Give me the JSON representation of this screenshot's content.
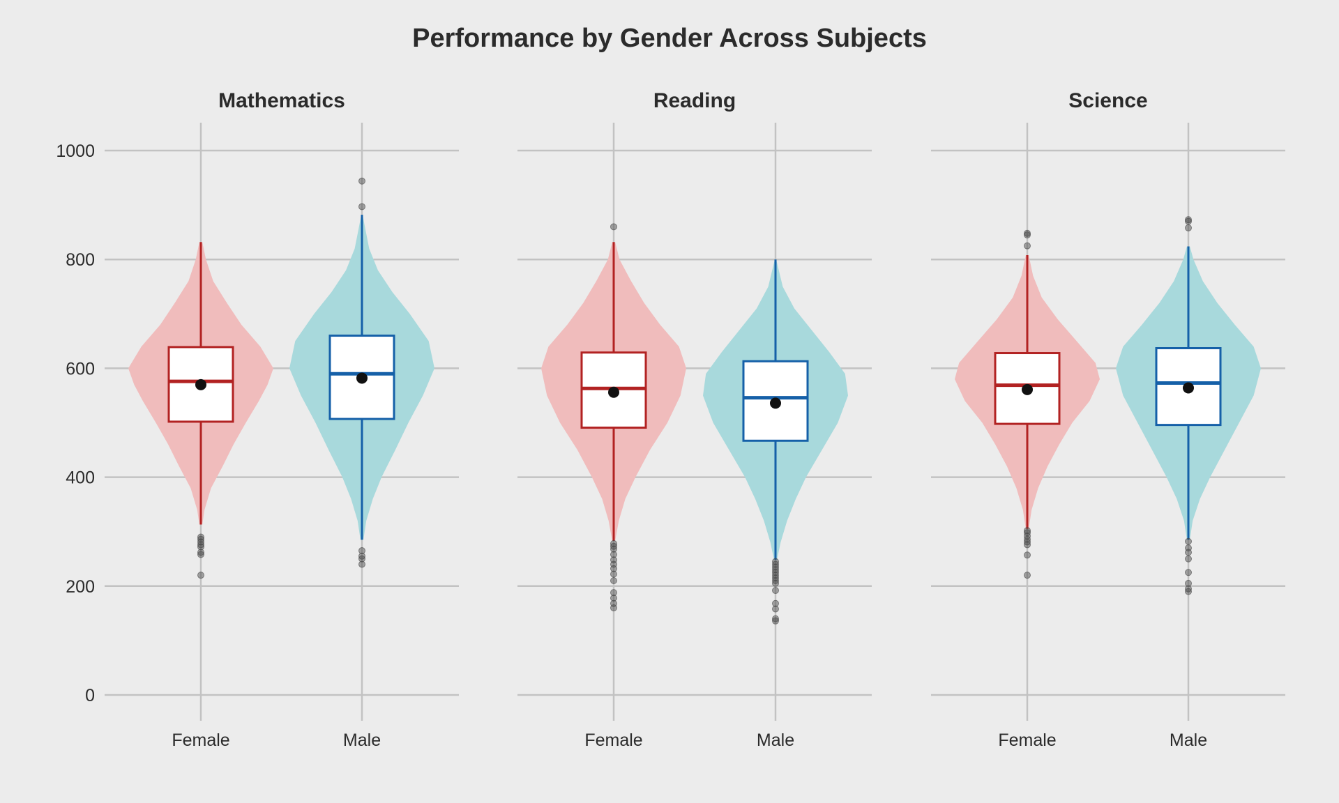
{
  "chart_data": {
    "type": "violin",
    "title": "Performance by Gender Across Subjects",
    "xlabel": "",
    "ylabel": "",
    "ylim": [
      0,
      1000
    ],
    "y_ticks": [
      0,
      200,
      400,
      600,
      800,
      1000
    ],
    "grid": true,
    "legend": "none",
    "groups": [
      "Female",
      "Male"
    ],
    "colors": {
      "Female": {
        "fill": "#f0bcbc",
        "line": "#b22222"
      },
      "Male": {
        "fill": "#a8d9dc",
        "line": "#1560a8"
      },
      "mean_point": "#111111",
      "outlier": "#444444"
    },
    "panels": [
      {
        "title": "Mathematics",
        "series": [
          {
            "name": "Female",
            "q1": 502,
            "median": 576,
            "q3": 639,
            "mean": 570,
            "whisker_low": 313,
            "whisker_high": 832,
            "outliers": [
              290,
              286,
              281,
              276,
              272,
              262,
              258,
              220
            ],
            "density": {
              "y": [
                313,
                340,
                380,
                420,
                460,
                500,
                540,
                570,
                600,
                640,
                680,
                720,
                760,
                800,
                832
              ],
              "width": [
                0.02,
                0.05,
                0.14,
                0.3,
                0.45,
                0.62,
                0.8,
                0.92,
                1.0,
                0.82,
                0.56,
                0.36,
                0.17,
                0.07,
                0.02
              ]
            }
          },
          {
            "name": "Male",
            "q1": 507,
            "median": 590,
            "q3": 660,
            "mean": 582,
            "whisker_low": 285,
            "whisker_high": 882,
            "outliers": [
              265,
              255,
              250,
              240,
              897,
              944
            ],
            "density": {
              "y": [
                285,
                320,
                360,
                400,
                450,
                500,
                550,
                600,
                650,
                700,
                740,
                780,
                820,
                860,
                882
              ],
              "width": [
                0.02,
                0.06,
                0.15,
                0.27,
                0.46,
                0.64,
                0.84,
                1.0,
                0.92,
                0.66,
                0.42,
                0.22,
                0.1,
                0.04,
                0.01
              ]
            }
          }
        ]
      },
      {
        "title": "Reading",
        "series": [
          {
            "name": "Female",
            "q1": 491,
            "median": 563,
            "q3": 629,
            "mean": 556,
            "whisker_low": 283,
            "whisker_high": 832,
            "outliers": [
              278,
              273,
              268,
              258,
              248,
              240,
              232,
              222,
              210,
              188,
              178,
              168,
              160,
              860
            ],
            "density": {
              "y": [
                283,
                320,
                360,
                400,
                450,
                500,
                550,
                600,
                640,
                680,
                720,
                760,
                800,
                832
              ],
              "width": [
                0.02,
                0.07,
                0.16,
                0.3,
                0.5,
                0.74,
                0.92,
                1.0,
                0.9,
                0.64,
                0.42,
                0.24,
                0.08,
                0.02
              ]
            }
          },
          {
            "name": "Male",
            "q1": 467,
            "median": 546,
            "q3": 613,
            "mean": 536,
            "whisker_low": 248,
            "whisker_high": 800,
            "outliers": [
              245,
              240,
              235,
              230,
              225,
              220,
              215,
              210,
              205,
              192,
              168,
              158,
              140,
              136
            ],
            "density": {
              "y": [
                248,
                280,
                320,
                360,
                400,
                450,
                500,
                550,
                590,
                630,
                670,
                710,
                750,
                800
              ],
              "width": [
                0.02,
                0.07,
                0.16,
                0.28,
                0.42,
                0.64,
                0.86,
                1.0,
                0.96,
                0.74,
                0.5,
                0.26,
                0.1,
                0.01
              ]
            }
          }
        ]
      },
      {
        "title": "Science",
        "series": [
          {
            "name": "Female",
            "q1": 498,
            "median": 569,
            "q3": 628,
            "mean": 561,
            "whisker_low": 305,
            "whisker_high": 808,
            "outliers": [
              302,
              298,
              292,
              286,
              281,
              276,
              257,
              220,
              825,
              845,
              848
            ],
            "density": {
              "y": [
                305,
                340,
                380,
                420,
                460,
                500,
                540,
                580,
                610,
                650,
                690,
                730,
                770,
                808
              ],
              "width": [
                0.02,
                0.06,
                0.15,
                0.28,
                0.44,
                0.62,
                0.86,
                1.0,
                0.94,
                0.68,
                0.42,
                0.2,
                0.08,
                0.02
              ]
            }
          },
          {
            "name": "Male",
            "q1": 496,
            "median": 573,
            "q3": 637,
            "mean": 564,
            "whisker_low": 285,
            "whisker_high": 824,
            "outliers": [
              282,
              270,
              262,
              250,
              225,
              205,
              195,
              190,
              858,
              870,
              873
            ],
            "density": {
              "y": [
                285,
                320,
                360,
                400,
                450,
                500,
                550,
                600,
                640,
                680,
                720,
                760,
                800,
                824
              ],
              "width": [
                0.02,
                0.06,
                0.16,
                0.3,
                0.5,
                0.7,
                0.9,
                1.0,
                0.9,
                0.64,
                0.4,
                0.2,
                0.07,
                0.02
              ]
            }
          }
        ]
      }
    ]
  }
}
